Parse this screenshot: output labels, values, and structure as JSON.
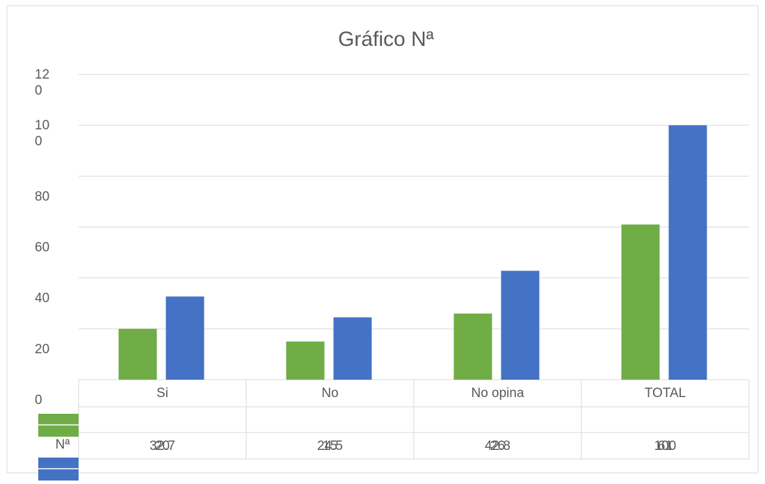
{
  "chart_data": {
    "type": "bar",
    "title": "Gráfico Nª",
    "categories": [
      "Si",
      "No",
      "No opina",
      "TOTAL"
    ],
    "series": [
      {
        "name": "Nª",
        "color": "#70ad47",
        "values": [
          20,
          15,
          26,
          61
        ]
      },
      {
        "color": "#4472c4",
        "values": [
          32.7,
          24.5,
          42.8,
          100
        ]
      }
    ],
    "ylim": [
      0,
      120
    ],
    "yticks": [
      0,
      20,
      40,
      60,
      80,
      100,
      120
    ],
    "grid": true
  }
}
